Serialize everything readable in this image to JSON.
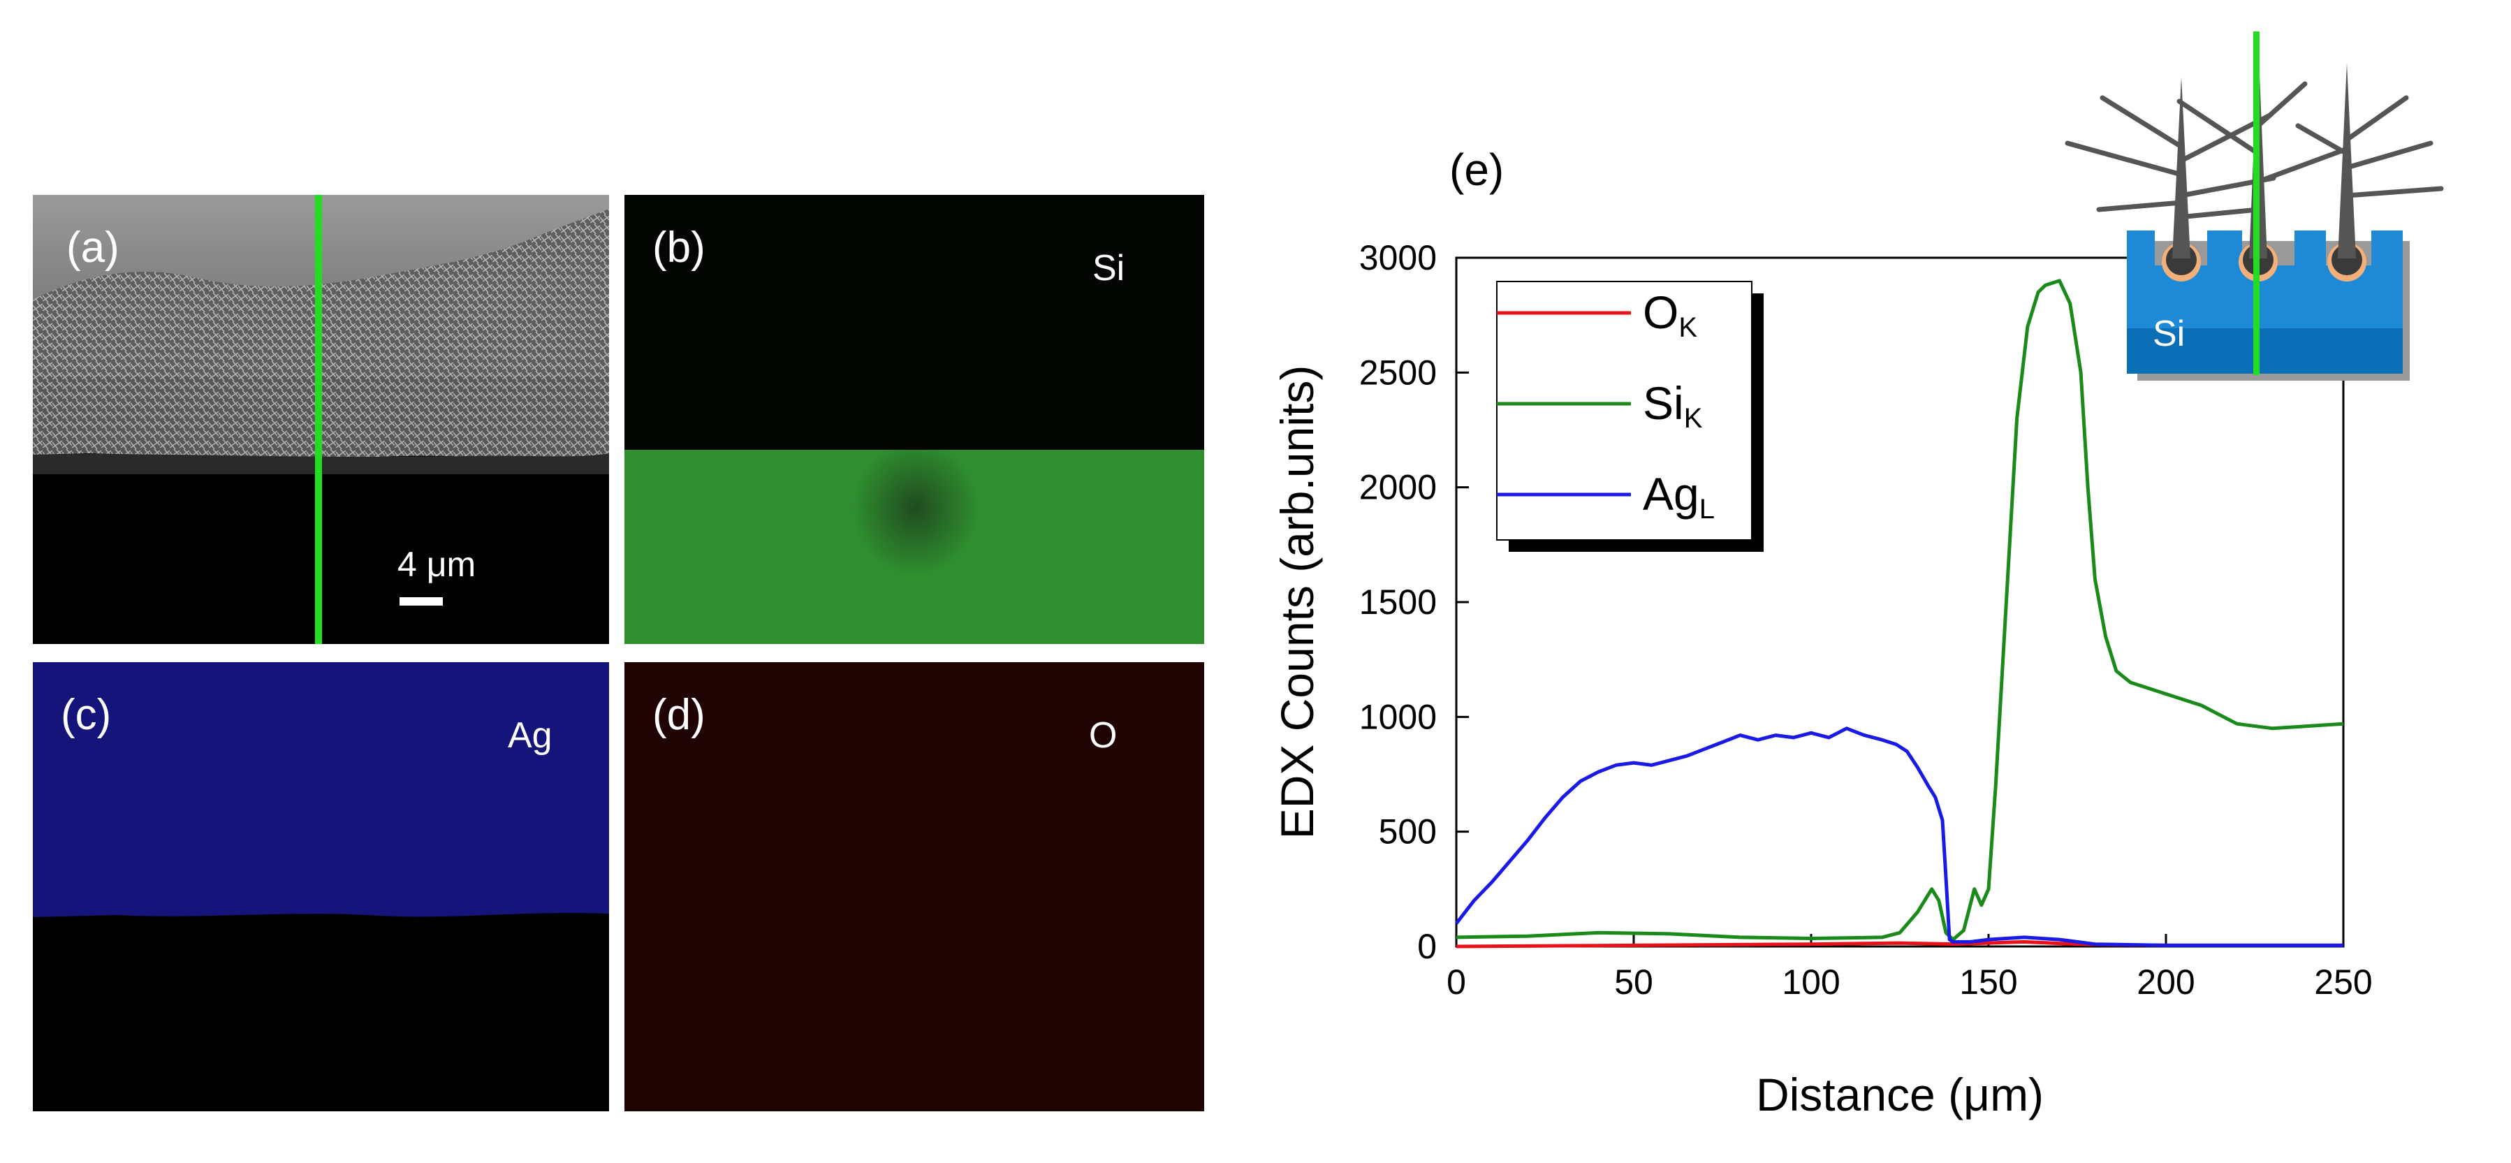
{
  "panels": {
    "a": {
      "label": "(a)",
      "scale_bar": "4 μm"
    },
    "b": {
      "label": "(b)",
      "element": "Si",
      "color": "#2f8f2f"
    },
    "c": {
      "label": "(c)",
      "element": "Ag",
      "color": "#1a1a8c"
    },
    "d": {
      "label": "(d)",
      "element": "O",
      "color": "#5a1010"
    }
  },
  "line_scan_color": "#22dd22",
  "inset": {
    "label": "Si"
  },
  "chart_data": {
    "type": "line",
    "panel_label": "(e)",
    "xlabel": "Distance (μm)",
    "ylabel": "EDX Counts (arb.units)",
    "xlim": [
      0,
      250
    ],
    "ylim": [
      0,
      3000
    ],
    "xticks": [
      0,
      50,
      100,
      150,
      200,
      250
    ],
    "yticks": [
      0,
      500,
      1000,
      1500,
      2000,
      2500,
      3000
    ],
    "legend_position": "top-left",
    "series": [
      {
        "name": "O",
        "sub": "K",
        "color": "#e8121a",
        "x": [
          0,
          50,
          100,
          125,
          140,
          160,
          175,
          200,
          250
        ],
        "y": [
          0,
          5,
          10,
          15,
          10,
          20,
          10,
          5,
          5
        ]
      },
      {
        "name": "Si",
        "sub": "K",
        "color": "#1a8a1a",
        "x": [
          0,
          20,
          40,
          60,
          80,
          100,
          120,
          125,
          130,
          134,
          136,
          138,
          140,
          143,
          146,
          148,
          150,
          152,
          155,
          158,
          161,
          164,
          166,
          170,
          173,
          176,
          178,
          180,
          183,
          186,
          190,
          200,
          210,
          220,
          230,
          240,
          250
        ],
        "y": [
          40,
          45,
          60,
          55,
          40,
          35,
          40,
          60,
          150,
          250,
          200,
          60,
          30,
          70,
          250,
          180,
          250,
          700,
          1500,
          2300,
          2700,
          2850,
          2880,
          2900,
          2800,
          2500,
          2000,
          1600,
          1350,
          1200,
          1150,
          1100,
          1050,
          970,
          950,
          960,
          970
        ]
      },
      {
        "name": "Ag",
        "sub": "L",
        "color": "#1a1ae6",
        "x": [
          0,
          5,
          10,
          15,
          20,
          25,
          30,
          35,
          40,
          45,
          50,
          55,
          60,
          65,
          70,
          75,
          80,
          85,
          90,
          95,
          100,
          105,
          110,
          115,
          120,
          124,
          127,
          130,
          133,
          135,
          137,
          138,
          139,
          140,
          145,
          150,
          160,
          170,
          175,
          180,
          200,
          250
        ],
        "y": [
          100,
          200,
          280,
          370,
          460,
          560,
          650,
          720,
          760,
          790,
          800,
          790,
          810,
          830,
          860,
          890,
          920,
          900,
          920,
          910,
          930,
          910,
          950,
          920,
          900,
          880,
          850,
          780,
          700,
          650,
          550,
          300,
          30,
          20,
          20,
          30,
          40,
          30,
          20,
          10,
          5,
          5
        ]
      }
    ]
  }
}
